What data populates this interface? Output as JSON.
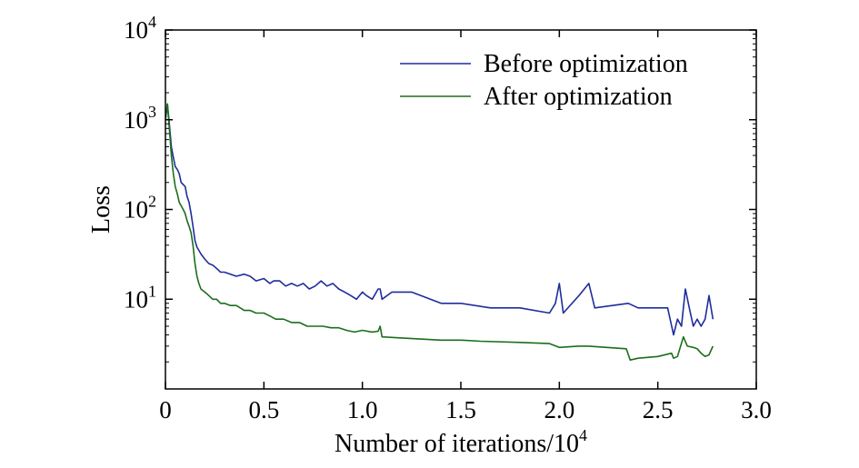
{
  "chart_data": {
    "type": "line",
    "ylabel": "Loss",
    "xlabel": {
      "text": "Number of iterations/10",
      "superscript": "4"
    },
    "xlim": [
      0,
      3.0
    ],
    "ylim": [
      1,
      10000
    ],
    "yscale": "log",
    "grid": false,
    "legend_position": "top-right",
    "x_ticks": [
      "0",
      "0.5",
      "1.0",
      "1.5",
      "2.0",
      "2.5",
      "3.0"
    ],
    "x_tick_values": [
      0,
      0.5,
      1.0,
      1.5,
      2.0,
      2.5,
      3.0
    ],
    "y_ticks": [
      {
        "value": 10,
        "base": "10",
        "exp": "1"
      },
      {
        "value": 100,
        "base": "10",
        "exp": "2"
      },
      {
        "value": 1000,
        "base": "10",
        "exp": "3"
      },
      {
        "value": 10000,
        "base": "10",
        "exp": "4"
      }
    ],
    "series": [
      {
        "name": "Before optimization",
        "color": "#1f2d9c",
        "x": [
          0.0,
          0.01,
          0.02,
          0.03,
          0.04,
          0.05,
          0.06,
          0.07,
          0.08,
          0.09,
          0.1,
          0.11,
          0.12,
          0.13,
          0.14,
          0.15,
          0.16,
          0.17,
          0.18,
          0.2,
          0.22,
          0.24,
          0.26,
          0.28,
          0.3,
          0.33,
          0.36,
          0.4,
          0.43,
          0.46,
          0.5,
          0.53,
          0.55,
          0.58,
          0.61,
          0.64,
          0.67,
          0.7,
          0.73,
          0.76,
          0.79,
          0.82,
          0.85,
          0.88,
          0.91,
          0.94,
          0.97,
          1.0,
          1.02,
          1.05,
          1.08,
          1.09,
          1.1,
          1.15,
          1.25,
          1.4,
          1.5,
          1.65,
          1.8,
          1.95,
          1.98,
          2.0,
          2.02,
          2.1,
          2.15,
          2.18,
          2.35,
          2.4,
          2.55,
          2.58,
          2.6,
          2.62,
          2.64,
          2.66,
          2.68,
          2.7,
          2.72,
          2.74,
          2.76,
          2.78
        ],
        "values": [
          1000,
          1500,
          900,
          500,
          380,
          300,
          280,
          250,
          200,
          190,
          180,
          140,
          120,
          90,
          65,
          45,
          38,
          35,
          32,
          28,
          25,
          24,
          22,
          20,
          20,
          19,
          18,
          19,
          18,
          16,
          17,
          15,
          16,
          16,
          14,
          15,
          14,
          15,
          13,
          14,
          16,
          14,
          15,
          13,
          12,
          11,
          10,
          12,
          11,
          10,
          13,
          13,
          10,
          12,
          12,
          9,
          9,
          8,
          8,
          7,
          9,
          15,
          7,
          11,
          15,
          8,
          9,
          8,
          8,
          4,
          6,
          5,
          13,
          8,
          5,
          6,
          5,
          6,
          11,
          6
        ],
        "approximate": true
      },
      {
        "name": "After optimization",
        "color": "#1c6e1c",
        "x": [
          0.0,
          0.01,
          0.02,
          0.03,
          0.04,
          0.05,
          0.06,
          0.07,
          0.08,
          0.09,
          0.1,
          0.11,
          0.12,
          0.13,
          0.14,
          0.15,
          0.16,
          0.17,
          0.18,
          0.2,
          0.22,
          0.24,
          0.26,
          0.28,
          0.3,
          0.33,
          0.36,
          0.4,
          0.43,
          0.46,
          0.5,
          0.53,
          0.56,
          0.6,
          0.64,
          0.68,
          0.72,
          0.76,
          0.8,
          0.84,
          0.88,
          0.92,
          0.96,
          1.0,
          1.05,
          1.08,
          1.09,
          1.1,
          1.2,
          1.4,
          1.5,
          1.6,
          1.8,
          1.95,
          2.0,
          2.1,
          2.15,
          2.34,
          2.36,
          2.4,
          2.5,
          2.57,
          2.58,
          2.6,
          2.63,
          2.65,
          2.68,
          2.7,
          2.72,
          2.74,
          2.76,
          2.78
        ],
        "values": [
          1000,
          1500,
          800,
          400,
          250,
          180,
          150,
          120,
          110,
          100,
          90,
          75,
          65,
          55,
          40,
          25,
          18,
          15,
          13,
          12,
          11,
          10,
          10,
          9,
          9,
          8.5,
          8.5,
          7.5,
          7.5,
          7,
          7,
          6.5,
          6,
          6,
          5.5,
          5.5,
          5,
          5,
          5,
          4.8,
          4.8,
          4.5,
          4.3,
          4.5,
          4.3,
          4.4,
          5.0,
          3.8,
          3.7,
          3.5,
          3.5,
          3.4,
          3.3,
          3.2,
          2.9,
          3.0,
          3.0,
          2.8,
          2.1,
          2.2,
          2.3,
          2.5,
          2.2,
          2.3,
          3.8,
          3.0,
          2.9,
          2.8,
          2.5,
          2.3,
          2.4,
          3.0
        ],
        "approximate": true
      }
    ]
  }
}
